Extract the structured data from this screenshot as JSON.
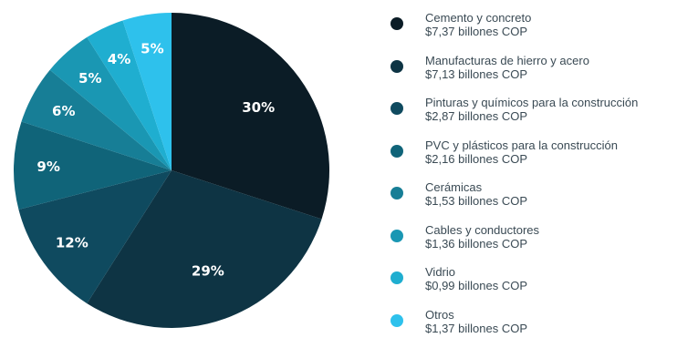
{
  "chart_data": {
    "type": "pie",
    "slices": [
      {
        "label": "Cemento y concreto",
        "amount": "$7,37 billones COP",
        "pct_label": "30%",
        "value": 30,
        "color": "#0b1c26"
      },
      {
        "label": "Manufacturas de hierro y acero",
        "amount": "$7,13 billones COP",
        "pct_label": "29%",
        "value": 29,
        "color": "#0e3444"
      },
      {
        "label": "Pinturas y químicos para la construcción",
        "amount": "$2,87 billones COP",
        "pct_label": "12%",
        "value": 12,
        "color": "#0f4a5f"
      },
      {
        "label": "PVC y plásticos para la construcción",
        "amount": "$2,16 billones COP",
        "pct_label": "9%",
        "value": 9,
        "color": "#106479"
      },
      {
        "label": "Cerámicas",
        "amount": "$1,53 billones COP",
        "pct_label": "6%",
        "value": 6,
        "color": "#177e96"
      },
      {
        "label": "Cables y conductores",
        "amount": "$1,36 billones COP",
        "pct_label": "5%",
        "value": 5,
        "color": "#1a97b3"
      },
      {
        "label": "Vidrio",
        "amount": "$0,99 billones COP",
        "pct_label": "4%",
        "value": 4,
        "color": "#1faed0"
      },
      {
        "label": "Otros",
        "amount": "$1,37 billones COP",
        "pct_label": "5%",
        "value": 5,
        "color": "#2ec1ec"
      }
    ],
    "legend_position": "right"
  }
}
